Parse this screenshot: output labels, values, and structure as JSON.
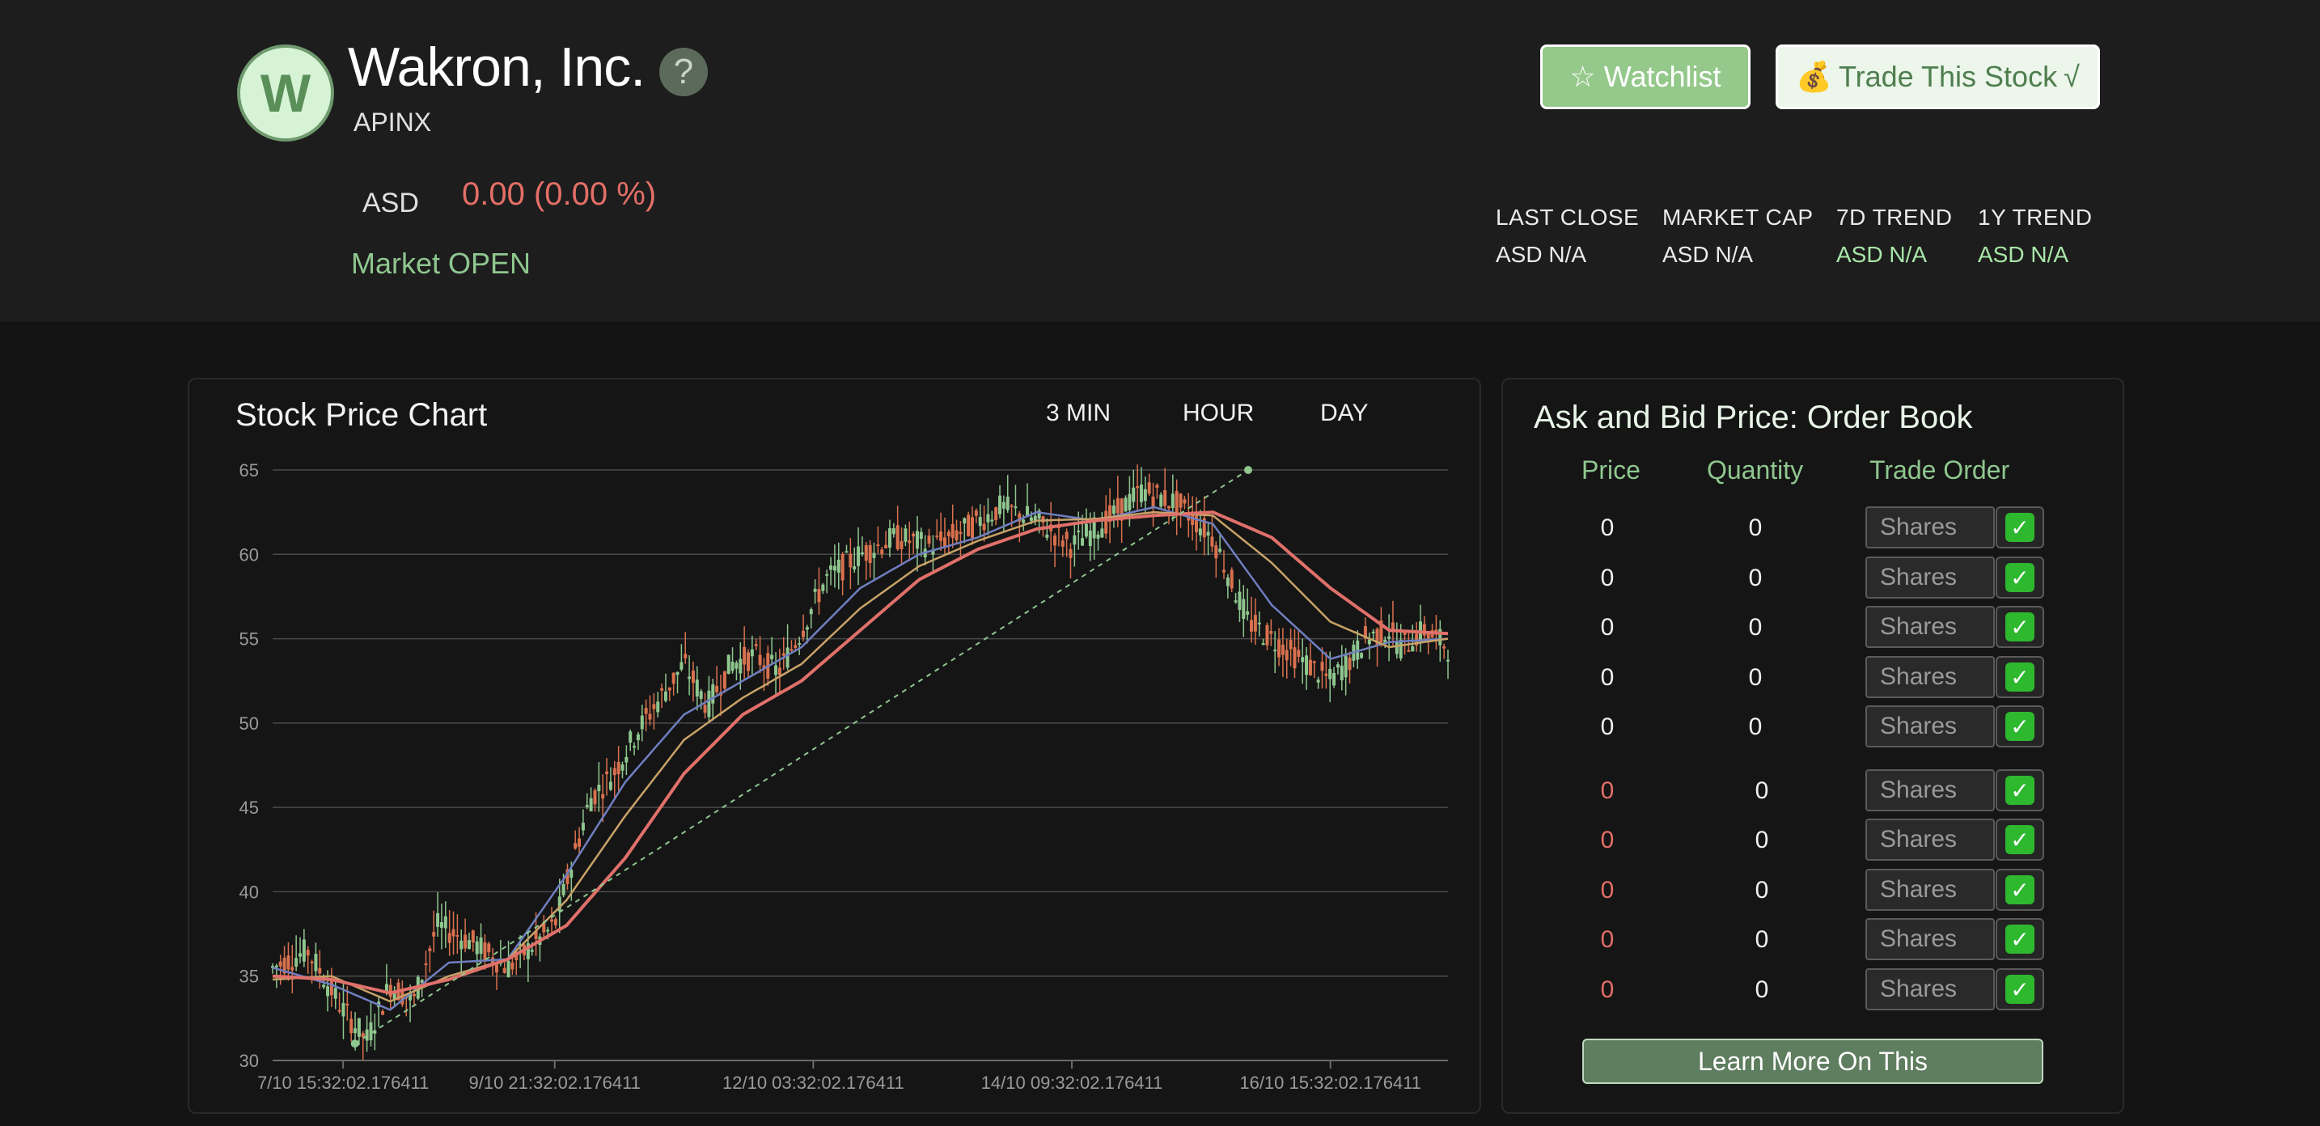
{
  "company": {
    "logo_letter": "W",
    "name": "Wakron, Inc.",
    "ticker": "APINX",
    "help_glyph": "?",
    "currency": "ASD",
    "change_text": "0.00 (0.00 %)",
    "market_status": "Market OPEN"
  },
  "buttons": {
    "watchlist_icon": "☆",
    "watchlist_label": "Watchlist",
    "trade_icon": "💰",
    "trade_label": "Trade This Stock",
    "trade_suffix": "√"
  },
  "stats": [
    {
      "label": "LAST CLOSE",
      "value": "ASD N/A"
    },
    {
      "label": "MARKET CAP",
      "value": "ASD N/A"
    },
    {
      "label": "7D TREND",
      "value": "ASD N/A"
    },
    {
      "label": "1Y TREND",
      "value": "ASD N/A"
    }
  ],
  "chart": {
    "title": "Stock Price Chart",
    "timeframes": [
      "3 MIN",
      "HOUR",
      "DAY"
    ]
  },
  "chart_data": {
    "type": "line",
    "title": "Stock Price Chart",
    "ylim": [
      30,
      65
    ],
    "yticks": [
      30,
      35,
      40,
      45,
      50,
      55,
      60,
      65
    ],
    "xtick_labels": [
      "7/10 15:32:02.176411",
      "9/10 21:32:02.176411",
      "12/10 03:32:02.176411",
      "14/10 09:32:02.176411",
      "16/10 15:32:02.176411"
    ],
    "xlabel": "",
    "ylabel": "",
    "series": [
      {
        "name": "price",
        "x": [
          0,
          3,
          6,
          8,
          10,
          12,
          14,
          17,
          20,
          24,
          27,
          29,
          31,
          33,
          35,
          37,
          39,
          41,
          43,
          45,
          47,
          50,
          53,
          56,
          59,
          62,
          65,
          68,
          71,
          74,
          77,
          80,
          83,
          85,
          87,
          88,
          90,
          92,
          93,
          95,
          96,
          97,
          98,
          100
        ],
        "values": [
          35.5,
          36.5,
          33.0,
          31.2,
          34.5,
          33.5,
          38.0,
          37.0,
          35.5,
          38.0,
          45.5,
          47.0,
          49.5,
          51.5,
          53.5,
          51.0,
          53.5,
          54.0,
          53.0,
          55.5,
          58.5,
          60.0,
          61.0,
          60.5,
          61.5,
          62.8,
          62.0,
          60.5,
          62.0,
          63.8,
          63.0,
          61.0,
          56.0,
          55.0,
          54.0,
          53.5,
          52.5,
          54.0,
          55.0,
          55.5,
          54.5,
          55.0,
          55.5,
          54.5
        ]
      },
      {
        "name": "ma-short",
        "x": [
          0,
          5,
          10,
          15,
          20,
          25,
          30,
          35,
          40,
          45,
          50,
          55,
          60,
          65,
          70,
          75,
          80,
          85,
          90,
          95,
          100
        ],
        "values": [
          35.5,
          34.5,
          33.0,
          35.8,
          36.0,
          41.0,
          46.5,
          50.5,
          52.5,
          54.5,
          58.0,
          60.0,
          61.0,
          62.5,
          62.0,
          62.8,
          61.8,
          57.0,
          53.8,
          54.8,
          55.0
        ]
      },
      {
        "name": "ma-medium",
        "x": [
          0,
          5,
          10,
          15,
          20,
          25,
          30,
          35,
          40,
          45,
          50,
          55,
          60,
          65,
          70,
          75,
          80,
          85,
          90,
          95,
          100
        ],
        "values": [
          34.8,
          35.0,
          33.5,
          35.0,
          36.0,
          39.5,
          44.5,
          49.0,
          51.5,
          53.5,
          56.8,
          59.3,
          60.8,
          62.0,
          62.1,
          62.5,
          62.3,
          59.5,
          56.0,
          54.5,
          55.0
        ]
      },
      {
        "name": "ma-long",
        "x": [
          0,
          5,
          10,
          15,
          20,
          25,
          30,
          35,
          40,
          45,
          50,
          55,
          60,
          65,
          70,
          75,
          80,
          85,
          90,
          95,
          100
        ],
        "values": [
          35.0,
          34.8,
          34.0,
          34.8,
          36.0,
          38.0,
          42.0,
          47.0,
          50.5,
          52.5,
          55.5,
          58.5,
          60.3,
          61.5,
          62.0,
          62.3,
          62.5,
          61.0,
          58.0,
          55.5,
          55.3
        ]
      },
      {
        "name": "trend",
        "x": [
          7,
          83
        ],
        "values": [
          31.0,
          65.0
        ]
      }
    ]
  },
  "order_book": {
    "title": "Ask and Bid Price: Order Book",
    "headers": [
      "Price",
      "Quantity",
      "Trade Order"
    ],
    "placeholder": "Shares",
    "check_glyph": "✓",
    "ask_rows": [
      {
        "price": "0",
        "qty": "0"
      },
      {
        "price": "0",
        "qty": "0"
      },
      {
        "price": "0",
        "qty": "0"
      },
      {
        "price": "0",
        "qty": "0"
      },
      {
        "price": "0",
        "qty": "0"
      }
    ],
    "bid_rows": [
      {
        "price": "0",
        "qty": "0"
      },
      {
        "price": "0",
        "qty": "0"
      },
      {
        "price": "0",
        "qty": "0"
      },
      {
        "price": "0",
        "qty": "0"
      },
      {
        "price": "0",
        "qty": "0"
      }
    ],
    "learn_more_label": "Learn More On This"
  },
  "colors": {
    "accent_green": "#8fc78f",
    "negative_red": "#e46f66",
    "candle_up": "#8fc78f",
    "candle_down": "#d9714e",
    "ma_short": "#6f7fc0",
    "ma_medium": "#c8a268",
    "ma_long": "#e0706a"
  }
}
